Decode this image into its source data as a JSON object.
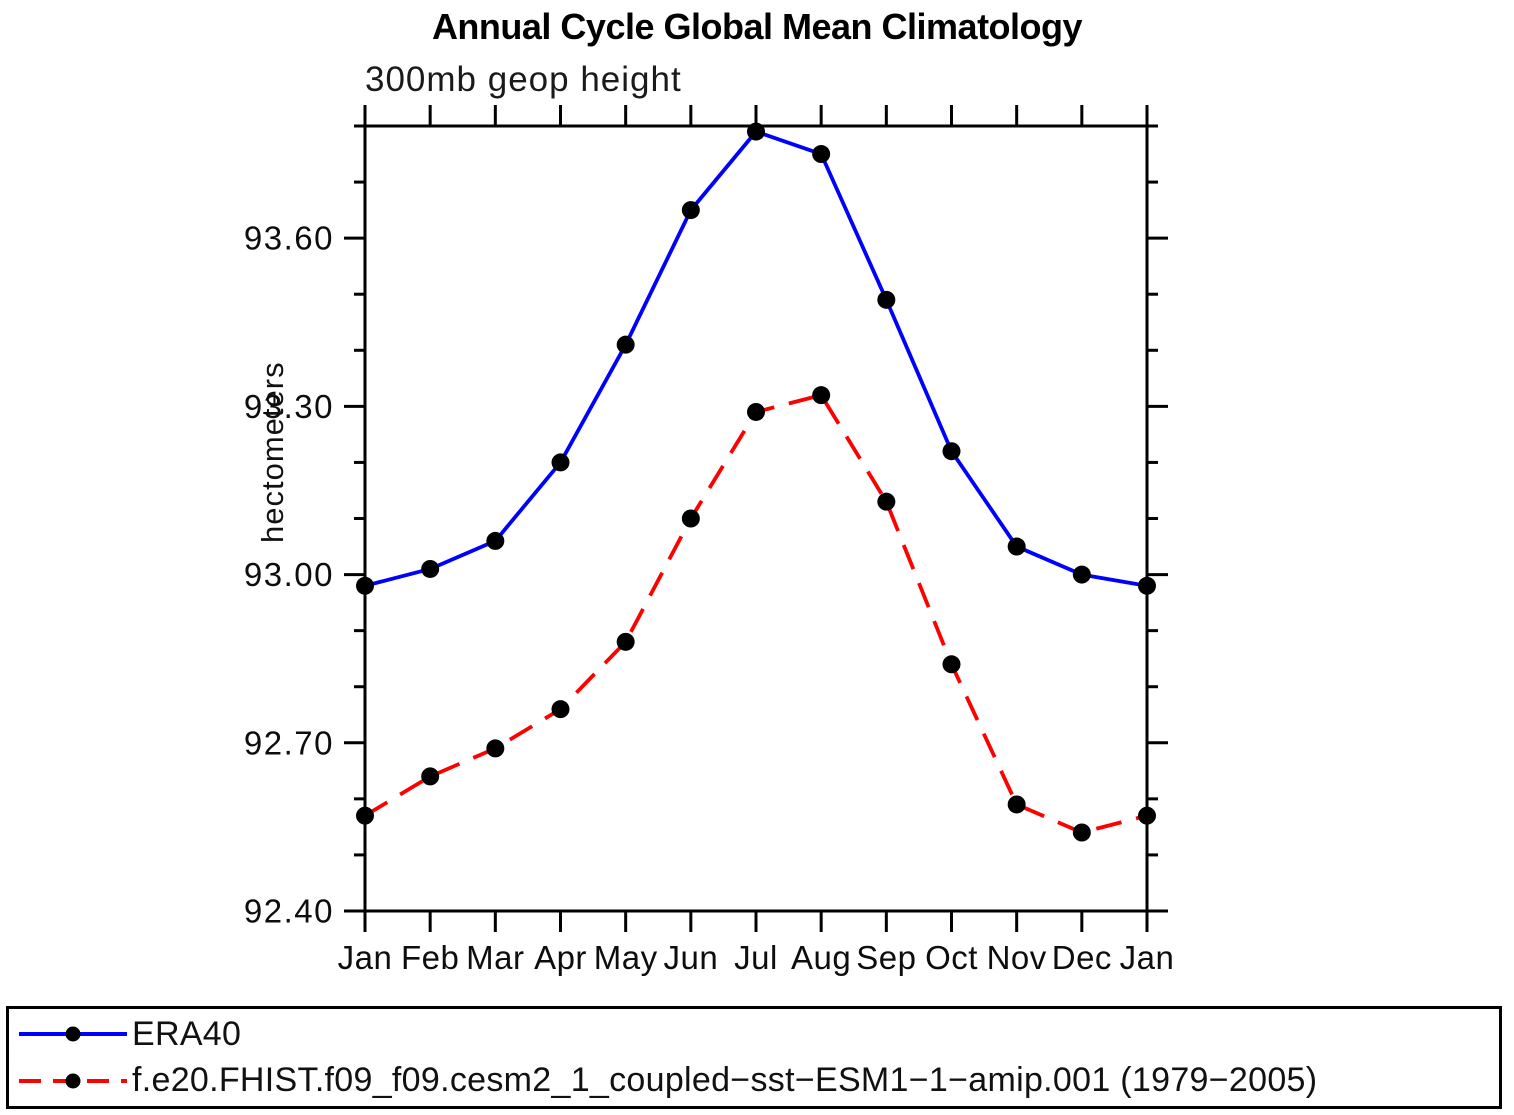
{
  "chart_data": {
    "type": "line",
    "title": "Annual Cycle Global Mean Climatology",
    "subtitle": "300mb geop height",
    "ylabel": "hectometers",
    "x_categories": [
      "Jan",
      "Feb",
      "Mar",
      "Apr",
      "May",
      "Jun",
      "Jul",
      "Aug",
      "Sep",
      "Oct",
      "Nov",
      "Dec",
      "Jan"
    ],
    "ylim": [
      92.4,
      93.8
    ],
    "ytick_values": [
      92.4,
      92.7,
      93.0,
      93.3,
      93.6
    ],
    "ytick_labels": [
      "92.40",
      "92.70",
      "93.00",
      "93.30",
      "93.60"
    ],
    "ytick_minor_step": 0.1,
    "grid": false,
    "legend_position": "bottom-box",
    "axis_color": "#000000",
    "marker_color": "#000000",
    "series": [
      {
        "name": "ERA40",
        "color": "#0000ff",
        "line_style": "solid",
        "marker": "filled-circle",
        "values": [
          92.98,
          93.01,
          93.06,
          93.2,
          93.41,
          93.65,
          93.79,
          93.75,
          93.49,
          93.22,
          93.05,
          93.0,
          92.98
        ]
      },
      {
        "name": "f.e20.FHIST.f09_f09.cesm2_1_coupled−sst−ESM1−1−amip.001 (1979−2005)",
        "color": "#ff0000",
        "line_style": "dashed",
        "marker": "filled-circle",
        "values": [
          92.57,
          92.64,
          92.69,
          92.76,
          92.88,
          93.1,
          93.29,
          93.32,
          93.13,
          92.84,
          92.59,
          92.54,
          92.57
        ]
      }
    ]
  }
}
